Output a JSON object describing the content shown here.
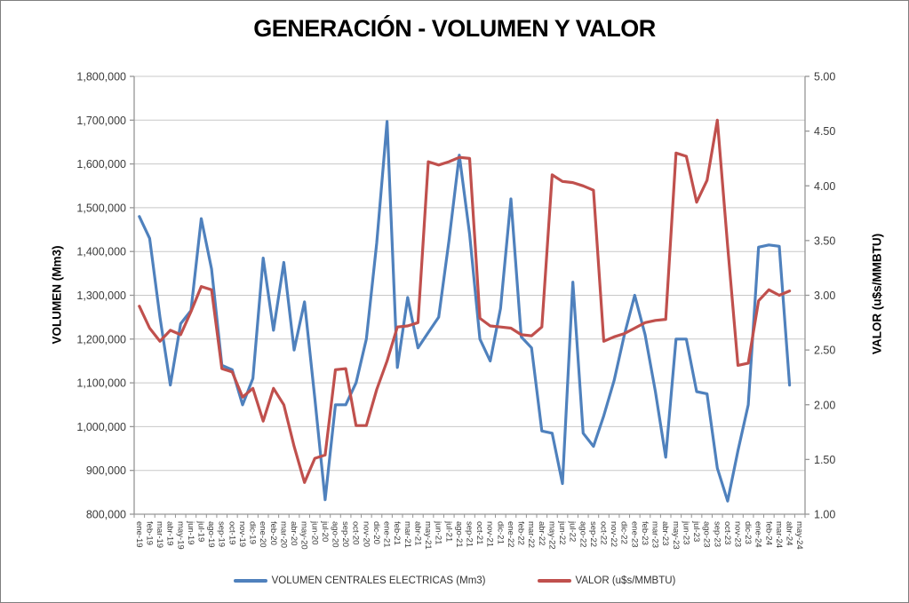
{
  "chart": {
    "title": "GENERACIÓN - VOLUMEN Y VALOR"
  },
  "chart_data": {
    "type": "line",
    "title": "GENERACIÓN - VOLUMEN Y VALOR",
    "grid": "horizontal-major",
    "legend_position": "bottom",
    "categories": [
      "ene-19",
      "feb-19",
      "mar-19",
      "abr-19",
      "may-19",
      "jun-19",
      "jul-19",
      "ago-19",
      "sep-19",
      "oct-19",
      "nov-19",
      "dic-19",
      "ene-20",
      "feb-20",
      "mar-20",
      "abr-20",
      "may-20",
      "jun-20",
      "jul-20",
      "ago-20",
      "sep-20",
      "oct-20",
      "nov-20",
      "dic-20",
      "ene-21",
      "feb-21",
      "mar-21",
      "abr-21",
      "may-21",
      "jun-21",
      "jul-21",
      "ago-21",
      "sep-21",
      "oct-21",
      "nov-21",
      "dic-21",
      "ene-22",
      "feb-22",
      "mar-22",
      "abr-22",
      "may-22",
      "jun-22",
      "jul-22",
      "ago-22",
      "sep-22",
      "oct-22",
      "nov-22",
      "dic-22",
      "ene-23",
      "feb-23",
      "mar-23",
      "abr-23",
      "may-23",
      "jun-23",
      "jul-23",
      "ago-23",
      "sep-23",
      "oct-23",
      "nov-23",
      "dic-23",
      "ene-24",
      "feb-24",
      "mar-24",
      "abr-24",
      "may-24"
    ],
    "left_axis": {
      "title": "VOLUMEN (Mm3)",
      "min": 800000,
      "max": 1800000,
      "step": 100000
    },
    "right_axis": {
      "title": "VALOR (u$s/MMBTU)",
      "min": 1.0,
      "max": 5.0,
      "step": 0.5
    },
    "series": [
      {
        "name": "VOLUMEN CENTRALES ELECTRICAS (Mm3)",
        "axis": "left",
        "color": "#4F81BD",
        "values": [
          1480000,
          1430000,
          1250000,
          1095000,
          1235000,
          1265000,
          1475000,
          1360000,
          1140000,
          1130000,
          1050000,
          1110000,
          1385000,
          1220000,
          1375000,
          1175000,
          1285000,
          1065000,
          833000,
          1050000,
          1050000,
          1100000,
          1200000,
          1420000,
          1697000,
          1135000,
          1295000,
          1180000,
          1215000,
          1250000,
          1425000,
          1620000,
          1440000,
          1200000,
          1150000,
          1270000,
          1520000,
          1205000,
          1180000,
          990000,
          985000,
          870000,
          1330000,
          985000,
          955000,
          1025000,
          1105000,
          1210000,
          1300000,
          1210000,
          1080000,
          930000,
          1200000,
          1200000,
          1080000,
          1075000,
          905000,
          830000,
          945000,
          1050000,
          1410000,
          1415000,
          1412000,
          1095000,
          null
        ]
      },
      {
        "name": "VALOR (u$s/MMBTU)",
        "axis": "right",
        "color": "#C0504D",
        "values": [
          2.9,
          2.7,
          2.58,
          2.68,
          2.64,
          2.85,
          3.08,
          3.05,
          2.33,
          2.3,
          2.07,
          2.15,
          1.85,
          2.15,
          2.0,
          1.62,
          1.29,
          1.51,
          1.54,
          2.32,
          2.33,
          1.81,
          1.81,
          2.14,
          2.4,
          2.71,
          2.72,
          2.75,
          4.22,
          4.19,
          4.22,
          4.26,
          4.25,
          2.79,
          2.72,
          2.71,
          2.7,
          2.64,
          2.63,
          2.71,
          4.1,
          4.04,
          4.03,
          4.0,
          3.96,
          2.58,
          2.62,
          2.65,
          2.7,
          2.75,
          2.77,
          2.78,
          4.3,
          4.27,
          3.85,
          4.05,
          4.6,
          3.45,
          2.36,
          2.38,
          2.95,
          3.05,
          3.0,
          3.04,
          null
        ]
      }
    ]
  },
  "style": {
    "gridline_color": "#C8C8C8",
    "axis_line_color": "#969696",
    "tick_text_color": "#3A3A3A",
    "background": "#FFFFFF"
  }
}
